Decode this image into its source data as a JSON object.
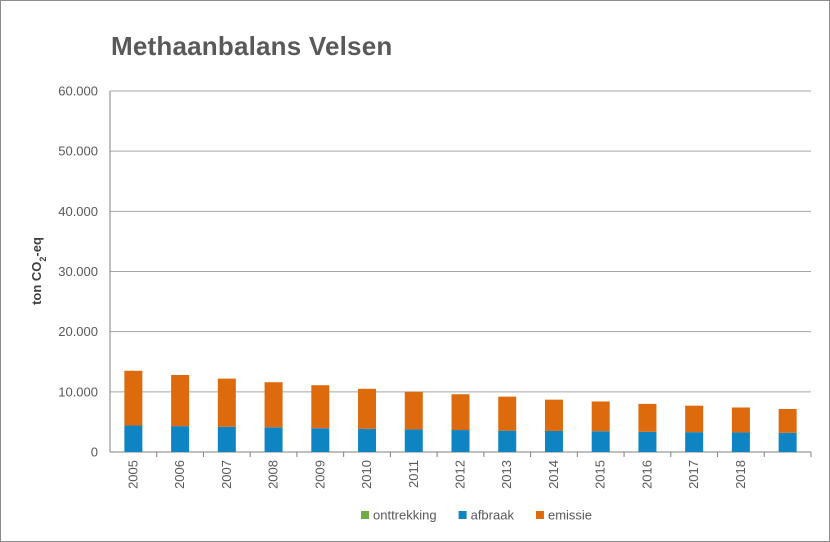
{
  "chart_data": {
    "type": "bar",
    "stacked": true,
    "title": "Methaanbalans Velsen",
    "ylabel": {
      "main": "ton CO",
      "sub": "2",
      "suffix": "-eq"
    },
    "xlabel": "",
    "ylim": [
      0,
      60000
    ],
    "yticks": [
      0,
      10000,
      20000,
      30000,
      40000,
      50000,
      60000
    ],
    "ytick_labels": [
      "0",
      "10.000",
      "20.000",
      "30.000",
      "40.000",
      "50.000",
      "60.000"
    ],
    "grid": true,
    "legend_position": "bottom",
    "categories": [
      "2005",
      "2006",
      "2007",
      "2008",
      "2009",
      "2010",
      "2011",
      "2012",
      "2013",
      "2014",
      "2015",
      "2016",
      "2017",
      "2018",
      ""
    ],
    "series": [
      {
        "name": "onttrekking",
        "color": "#70ad47",
        "values": [
          0,
          0,
          0,
          0,
          0,
          0,
          0,
          0,
          0,
          0,
          0,
          0,
          0,
          0,
          0
        ]
      },
      {
        "name": "afbraak",
        "color": "#0e85c2",
        "values": [
          4400,
          4300,
          4200,
          4100,
          3950,
          3850,
          3750,
          3650,
          3550,
          3500,
          3450,
          3350,
          3300,
          3250,
          3200
        ]
      },
      {
        "name": "emissie",
        "color": "#dd6b0d",
        "values": [
          9100,
          8500,
          8000,
          7500,
          7150,
          6650,
          6250,
          5950,
          5650,
          5200,
          4950,
          4650,
          4400,
          4150,
          3950
        ]
      }
    ],
    "gridline_color": "#a6a6a6",
    "axis_color": "#808080"
  }
}
